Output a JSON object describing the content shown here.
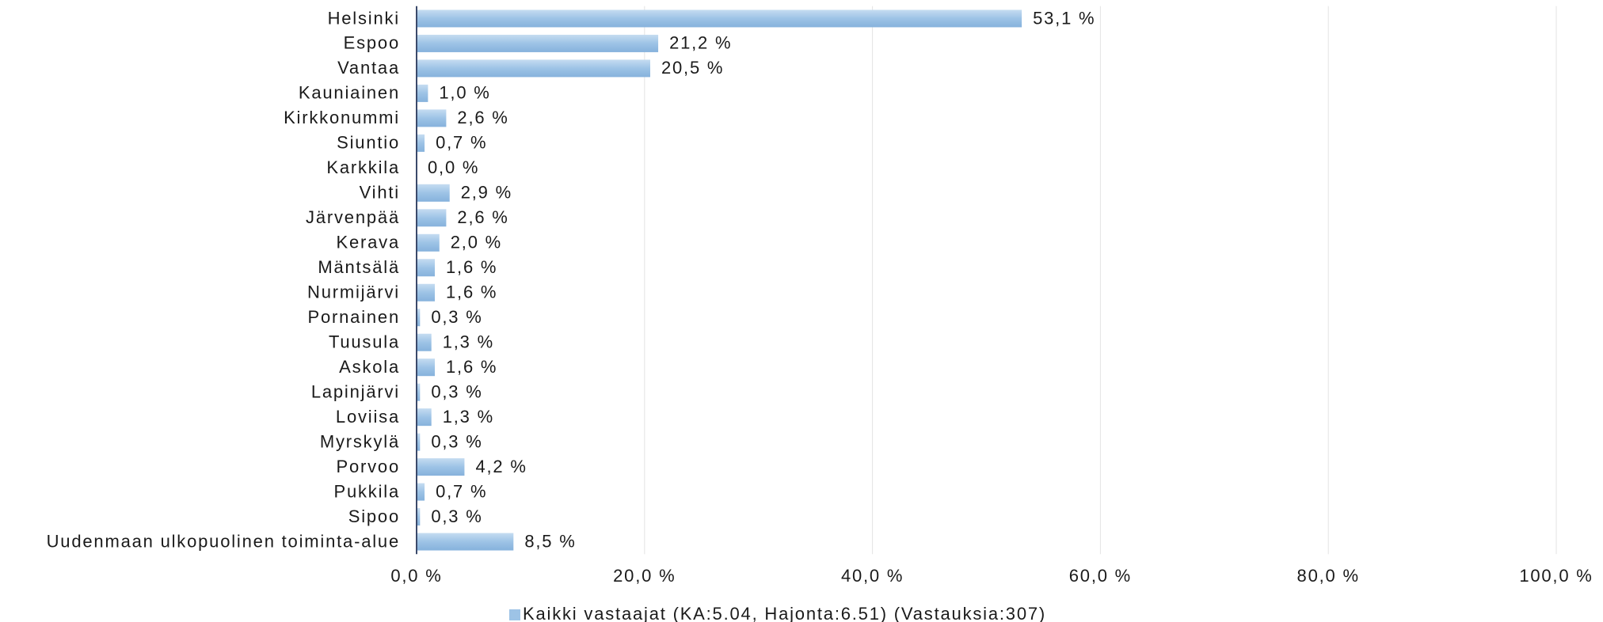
{
  "chart_data": {
    "type": "barh",
    "categories": [
      "Helsinki",
      "Espoo",
      "Vantaa",
      "Kauniainen",
      "Kirkkonummi",
      "Siuntio",
      "Karkkila",
      "Vihti",
      "Järvenpää",
      "Kerava",
      "Mäntsälä",
      "Nurmijärvi",
      "Pornainen",
      "Tuusula",
      "Askola",
      "Lapinjärvi",
      "Loviisa",
      "Myrskylä",
      "Porvoo",
      "Pukkila",
      "Sipoo",
      "Uudenmaan ulkopuolinen toiminta-alue"
    ],
    "series": [
      {
        "name": "Kaikki vastaajat (KA:5.04, Hajonta:6.51) (Vastauksia:307)",
        "color": "#9dc3e6",
        "values": [
          53.1,
          21.2,
          20.5,
          1.0,
          2.6,
          0.7,
          0.0,
          2.9,
          2.6,
          2.0,
          1.6,
          1.6,
          0.3,
          1.3,
          1.6,
          0.3,
          1.3,
          0.3,
          4.2,
          0.7,
          0.3,
          8.5
        ],
        "value_labels": [
          "53,1 %",
          "21,2 %",
          "20,5 %",
          "1,0 %",
          "2,6 %",
          "0,7 %",
          "0,0 %",
          "2,9 %",
          "2,6 %",
          "2,0 %",
          "1,6 %",
          "1,6 %",
          "0,3 %",
          "1,3 %",
          "1,6 %",
          "0,3 %",
          "1,3 %",
          "0,3 %",
          "4,2 %",
          "0,7 %",
          "0,3 %",
          "8,5 %"
        ]
      }
    ],
    "xlim": [
      0,
      100
    ],
    "xticks": [
      {
        "value": 0,
        "label": "0,0 %"
      },
      {
        "value": 20,
        "label": "20,0 %"
      },
      {
        "value": 40,
        "label": "40,0 %"
      },
      {
        "value": 60,
        "label": "60,0 %"
      },
      {
        "value": 80,
        "label": "80,0 %"
      },
      {
        "value": 100,
        "label": "100,0 %"
      }
    ],
    "grid": true,
    "legend": "bottom"
  }
}
